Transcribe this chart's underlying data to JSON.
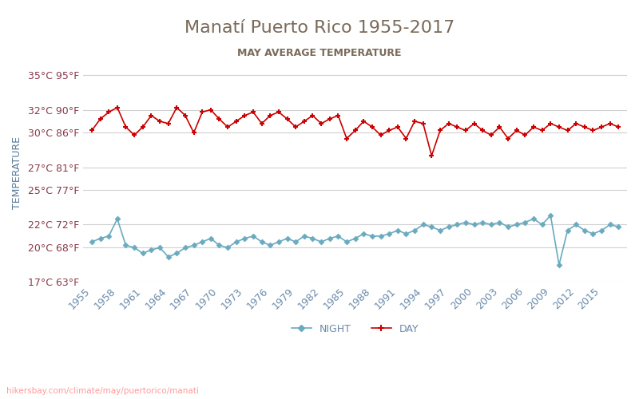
{
  "title": "Manatí Puerto Rico 1955-2017",
  "subtitle": "MAY AVERAGE TEMPERATURE",
  "ylabel": "TEMPERATURE",
  "title_color": "#7a6a5a",
  "subtitle_color": "#7a6a5a",
  "ylabel_color": "#5a7a9a",
  "background_color": "#ffffff",
  "grid_color": "#d0d0d0",
  "years": [
    1955,
    1956,
    1957,
    1958,
    1959,
    1960,
    1961,
    1962,
    1963,
    1964,
    1965,
    1966,
    1967,
    1968,
    1969,
    1970,
    1971,
    1972,
    1973,
    1974,
    1975,
    1976,
    1977,
    1978,
    1979,
    1980,
    1981,
    1982,
    1983,
    1984,
    1985,
    1986,
    1987,
    1988,
    1989,
    1990,
    1991,
    1992,
    1993,
    1994,
    1995,
    1996,
    1997,
    1998,
    1999,
    2000,
    2001,
    2002,
    2003,
    2004,
    2005,
    2006,
    2007,
    2008,
    2009,
    2010,
    2011,
    2012,
    2013,
    2014,
    2015,
    2016,
    2017
  ],
  "day_temps": [
    30.2,
    31.2,
    31.8,
    32.2,
    30.5,
    29.8,
    30.5,
    31.5,
    31.0,
    30.8,
    32.2,
    31.5,
    30.0,
    31.8,
    32.0,
    31.2,
    30.5,
    31.0,
    31.5,
    31.8,
    30.8,
    31.5,
    31.8,
    31.2,
    30.5,
    31.0,
    31.5,
    30.8,
    31.2,
    31.5,
    29.5,
    30.2,
    31.0,
    30.5,
    29.8,
    30.2,
    30.5,
    29.5,
    31.0,
    30.8,
    28.0,
    30.2,
    30.8,
    30.5,
    30.2,
    30.8,
    30.2,
    29.8,
    30.5,
    29.5,
    30.2,
    29.8,
    30.5,
    30.2,
    30.8,
    30.5,
    30.2,
    30.8,
    30.5,
    30.2,
    30.5,
    30.8,
    30.5
  ],
  "night_temps": [
    20.5,
    20.8,
    21.0,
    22.5,
    20.2,
    20.0,
    19.5,
    19.8,
    20.0,
    19.2,
    19.5,
    20.0,
    20.2,
    20.5,
    20.8,
    20.2,
    20.0,
    20.5,
    20.8,
    21.0,
    20.5,
    20.2,
    20.5,
    20.8,
    20.5,
    21.0,
    20.8,
    20.5,
    20.8,
    21.0,
    20.5,
    20.8,
    21.2,
    21.0,
    21.0,
    21.2,
    21.5,
    21.2,
    21.5,
    22.0,
    21.8,
    21.5,
    21.8,
    22.0,
    22.2,
    22.0,
    22.2,
    22.0,
    22.2,
    21.8,
    22.0,
    22.2,
    22.5,
    22.0,
    22.8,
    18.5,
    21.5,
    22.0,
    21.5,
    21.2,
    21.5,
    22.0,
    21.8
  ],
  "day_color": "#cc0000",
  "night_color": "#6aaabf",
  "ylim_min": 17,
  "ylim_max": 36,
  "yticks_c": [
    17,
    20,
    22,
    25,
    27,
    30,
    32,
    35
  ],
  "yticks_f": [
    63,
    68,
    72,
    77,
    81,
    86,
    90,
    95
  ],
  "xtick_years": [
    1955,
    1958,
    1961,
    1964,
    1967,
    1970,
    1973,
    1976,
    1979,
    1982,
    1985,
    1988,
    1991,
    1994,
    1997,
    2000,
    2003,
    2006,
    2009,
    2012,
    2015
  ],
  "tick_color": "#6a8aaa",
  "tick_fontsize": 9,
  "title_fontsize": 16,
  "subtitle_fontsize": 9,
  "ylabel_fontsize": 9,
  "legend_night_label": "NIGHT",
  "legend_day_label": "DAY",
  "watermark": "hikersbay.com/climate/may/puertorico/manati",
  "watermark_color": "#ff9999"
}
